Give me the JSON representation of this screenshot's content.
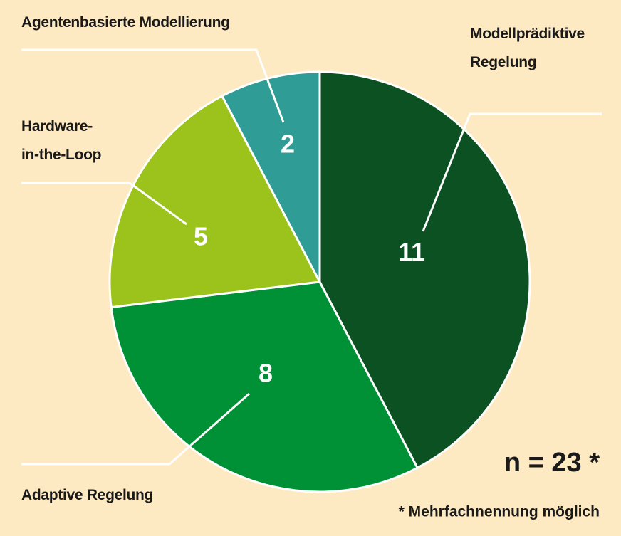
{
  "chart_data": {
    "type": "pie",
    "categories": [
      "Modellprädiktive Regelung",
      "Adaptive Regelung",
      "Hardware-in-the-Loop",
      "Agentenbasierte Modellierung"
    ],
    "values": [
      11,
      8,
      5,
      2
    ],
    "colors": [
      "#0b5121",
      "#009036",
      "#9bc31c",
      "#2f9d95"
    ],
    "annotations": [
      "n = 23 *",
      "* Mehrfachnennung möglich"
    ]
  }
}
